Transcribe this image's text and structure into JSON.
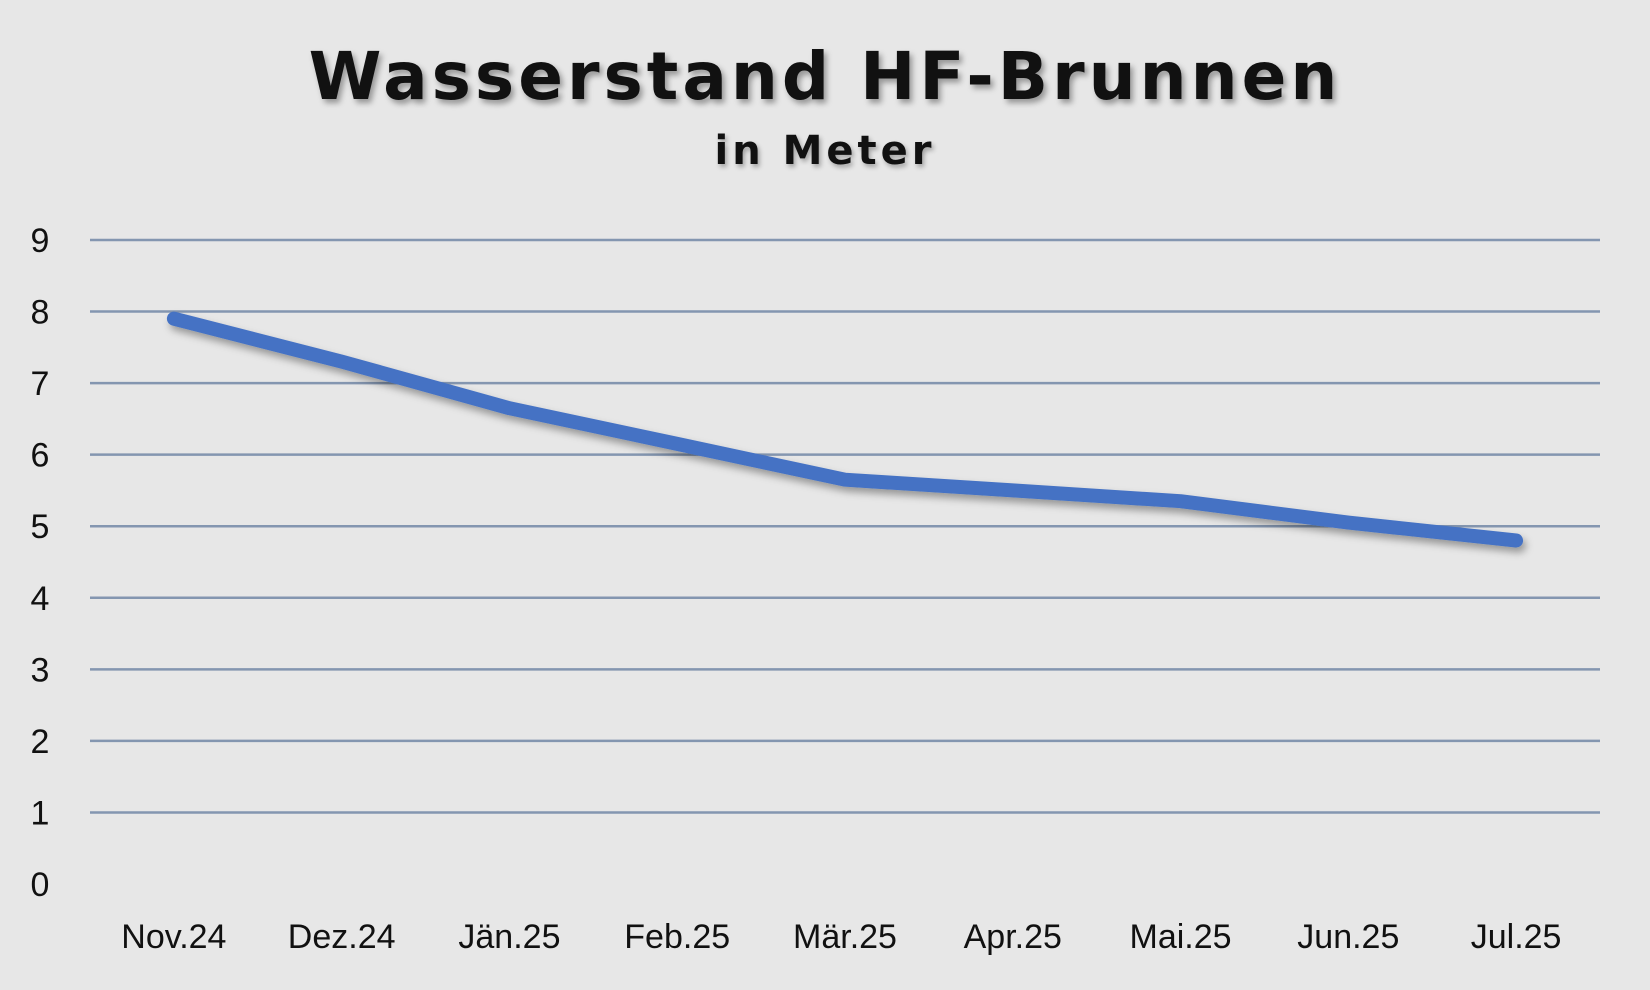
{
  "chart_data": {
    "type": "line",
    "title": "Wasserstand HF-Brunnen",
    "subtitle": "in Meter",
    "xlabel": "",
    "ylabel": "",
    "categories": [
      "Nov.24",
      "Dez.24",
      "Jän.25",
      "Feb.25",
      "Mär.25",
      "Apr.25",
      "Mai.25",
      "Jun.25",
      "Jul.25"
    ],
    "series": [
      {
        "values": [
          7.9,
          7.3,
          6.65,
          6.15,
          5.65,
          5.5,
          5.35,
          5.05,
          4.8
        ],
        "color": "#4472c4"
      }
    ],
    "ylim": [
      0,
      9
    ],
    "yticks": [
      0,
      1,
      2,
      3,
      4,
      5,
      6,
      7,
      8,
      9
    ],
    "grid": true,
    "gridColor": "#8496b0",
    "legend": "none",
    "background": "#e7e7e7"
  }
}
